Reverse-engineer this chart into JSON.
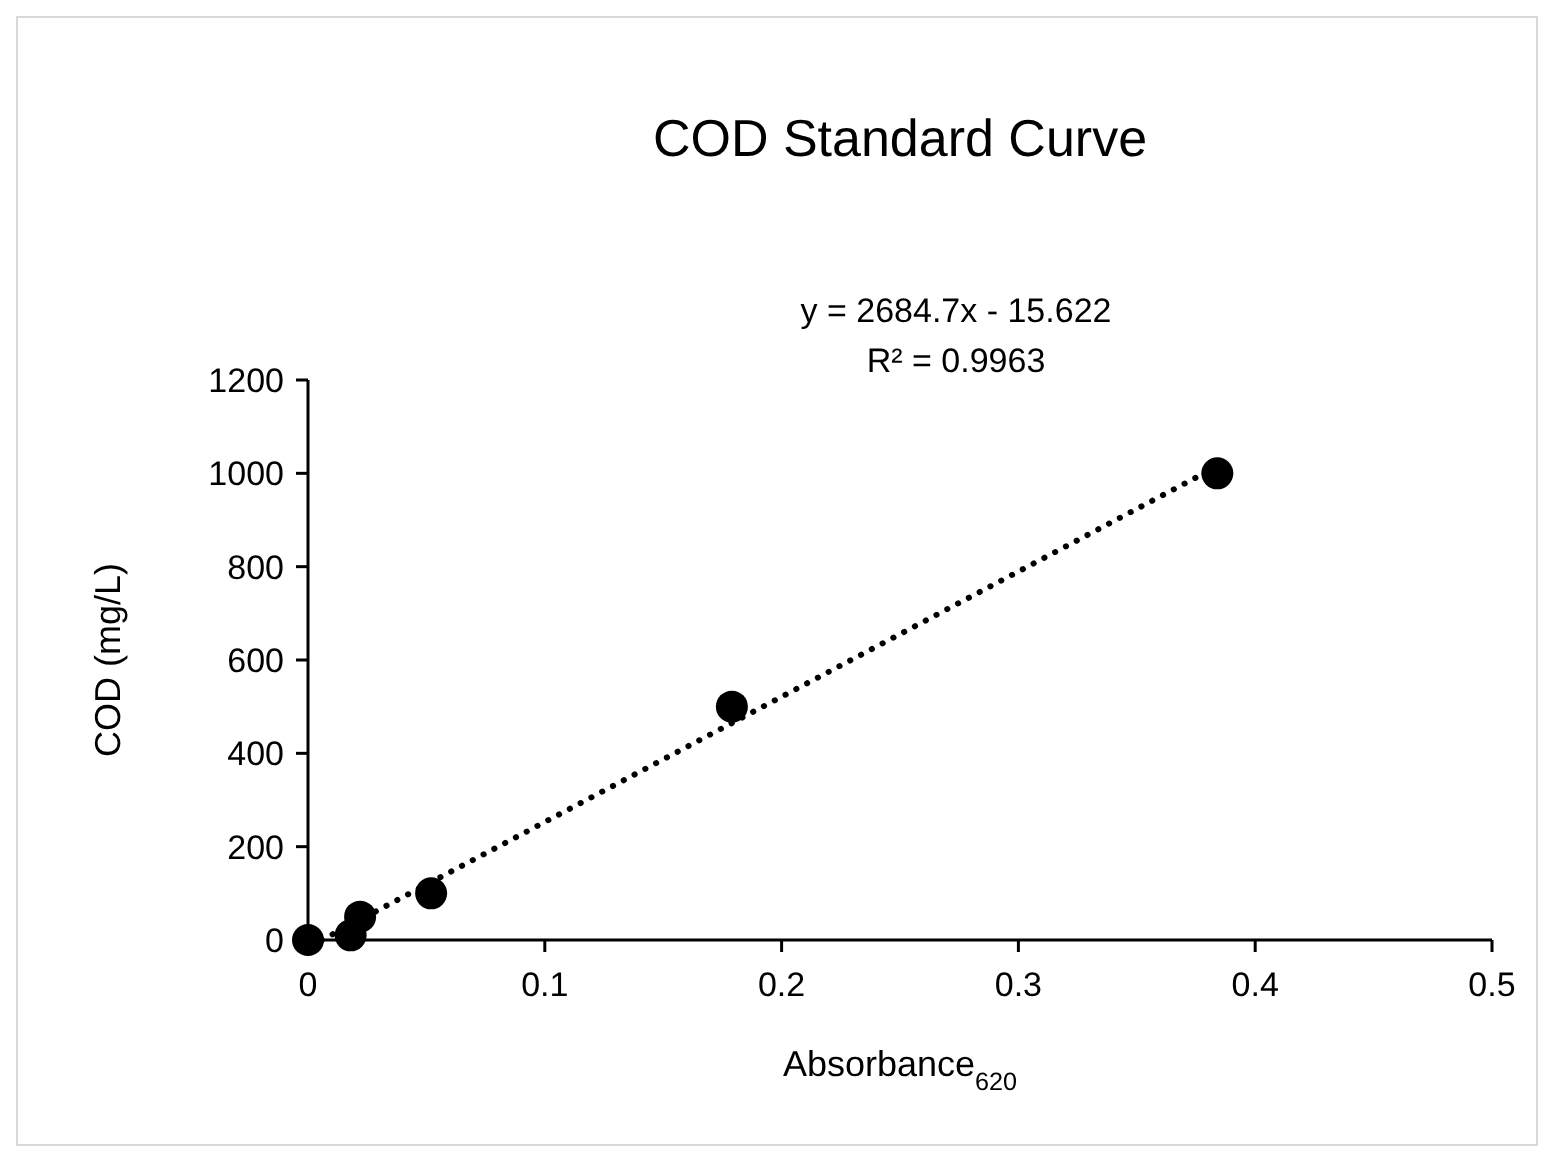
{
  "chart_data": {
    "type": "scatter",
    "title": "COD Standard Curve",
    "xlabel": "Absorbance$_{620}$",
    "ylabel": "COD (mg/L)",
    "xlim": [
      0,
      0.5
    ],
    "xticks": [
      0,
      0.1,
      0.2,
      0.3,
      0.4,
      0.5
    ],
    "ylim": [
      0,
      1200
    ],
    "yticks": [
      0,
      200,
      400,
      600,
      800,
      1000,
      1200
    ],
    "grid": false,
    "series": [
      {
        "color": "#000000",
        "marker": "circle",
        "x": [
          0,
          0.018,
          0.022,
          0.052,
          0.179,
          0.384
        ],
        "values": [
          0,
          10,
          50,
          100,
          500,
          1000
        ]
      },
      {
        "type": "line",
        "color": "#000000",
        "marker": "none",
        "line_style": "dotted",
        "x": [
          0.0058,
          0.384
        ],
        "values": [
          0,
          1015
        ]
      }
    ],
    "annotations": [
      "y = 2684.7x - 15.622",
      "R² = 0.9963"
    ]
  }
}
